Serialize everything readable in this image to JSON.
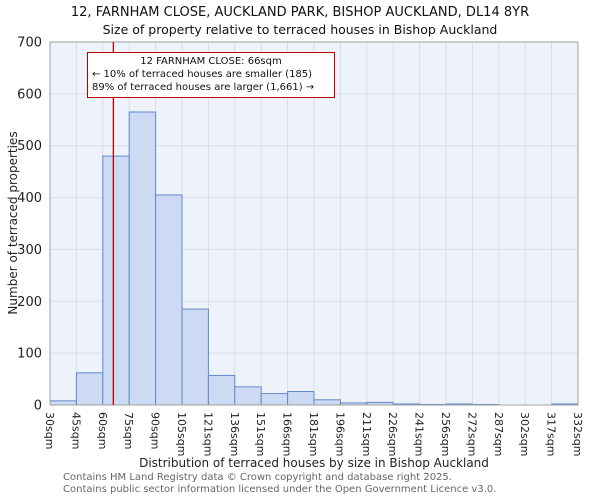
{
  "title": "12, FARNHAM CLOSE, AUCKLAND PARK, BISHOP AUCKLAND, DL14 8YR",
  "subtitle": "Size of property relative to terraced houses in Bishop Auckland",
  "ylabel": "Number of terraced properties",
  "xlabel": "Distribution of terraced houses by size in Bishop Auckland",
  "annotation": {
    "line1": "12 FARNHAM CLOSE: 66sqm",
    "line2": "← 10% of terraced houses are smaller (185)",
    "line3": "89% of terraced houses are larger (1,661) →"
  },
  "footer": {
    "line1": "Contains HM Land Registry data © Crown copyright and database right 2025.",
    "line2": "Contains public sector information licensed under the Open Government Licence v3.0."
  },
  "chart_data": {
    "type": "bar",
    "title": "12, FARNHAM CLOSE, AUCKLAND PARK, BISHOP AUCKLAND, DL14 8YR",
    "subtitle": "Size of property relative to terraced houses in Bishop Auckland",
    "xlabel": "Distribution of terraced houses by size in Bishop Auckland",
    "ylabel": "Number of terraced properties",
    "bin_edges": [
      30,
      45,
      60,
      75,
      90,
      105,
      121,
      136,
      151,
      166,
      181,
      196,
      211,
      226,
      241,
      256,
      272,
      287,
      302,
      317,
      332
    ],
    "categories": [
      "30sqm",
      "45sqm",
      "60sqm",
      "75sqm",
      "90sqm",
      "105sqm",
      "121sqm",
      "136sqm",
      "151sqm",
      "166sqm",
      "181sqm",
      "196sqm",
      "211sqm",
      "226sqm",
      "241sqm",
      "256sqm",
      "272sqm",
      "287sqm",
      "302sqm",
      "317sqm",
      "332sqm"
    ],
    "values": [
      8,
      62,
      480,
      565,
      405,
      185,
      57,
      35,
      22,
      26,
      10,
      4,
      5,
      2,
      1,
      2,
      1,
      0,
      0,
      2
    ],
    "ylim": [
      0,
      700
    ],
    "yticks": [
      0,
      100,
      200,
      300,
      400,
      500,
      600,
      700
    ],
    "grid": true,
    "legend": null,
    "marker": {
      "value_sqm": 66,
      "smaller_count": 185,
      "smaller_pct": 10,
      "larger_count": 1661,
      "larger_pct": 89
    },
    "colors": {
      "bar_fill": "#ccdaf3",
      "bar_stroke": "#6189c7",
      "marker": "#bb0000",
      "grid": "#d9dde8",
      "plot_bg": "#eef2fa",
      "border": "#a0a0a0"
    }
  }
}
